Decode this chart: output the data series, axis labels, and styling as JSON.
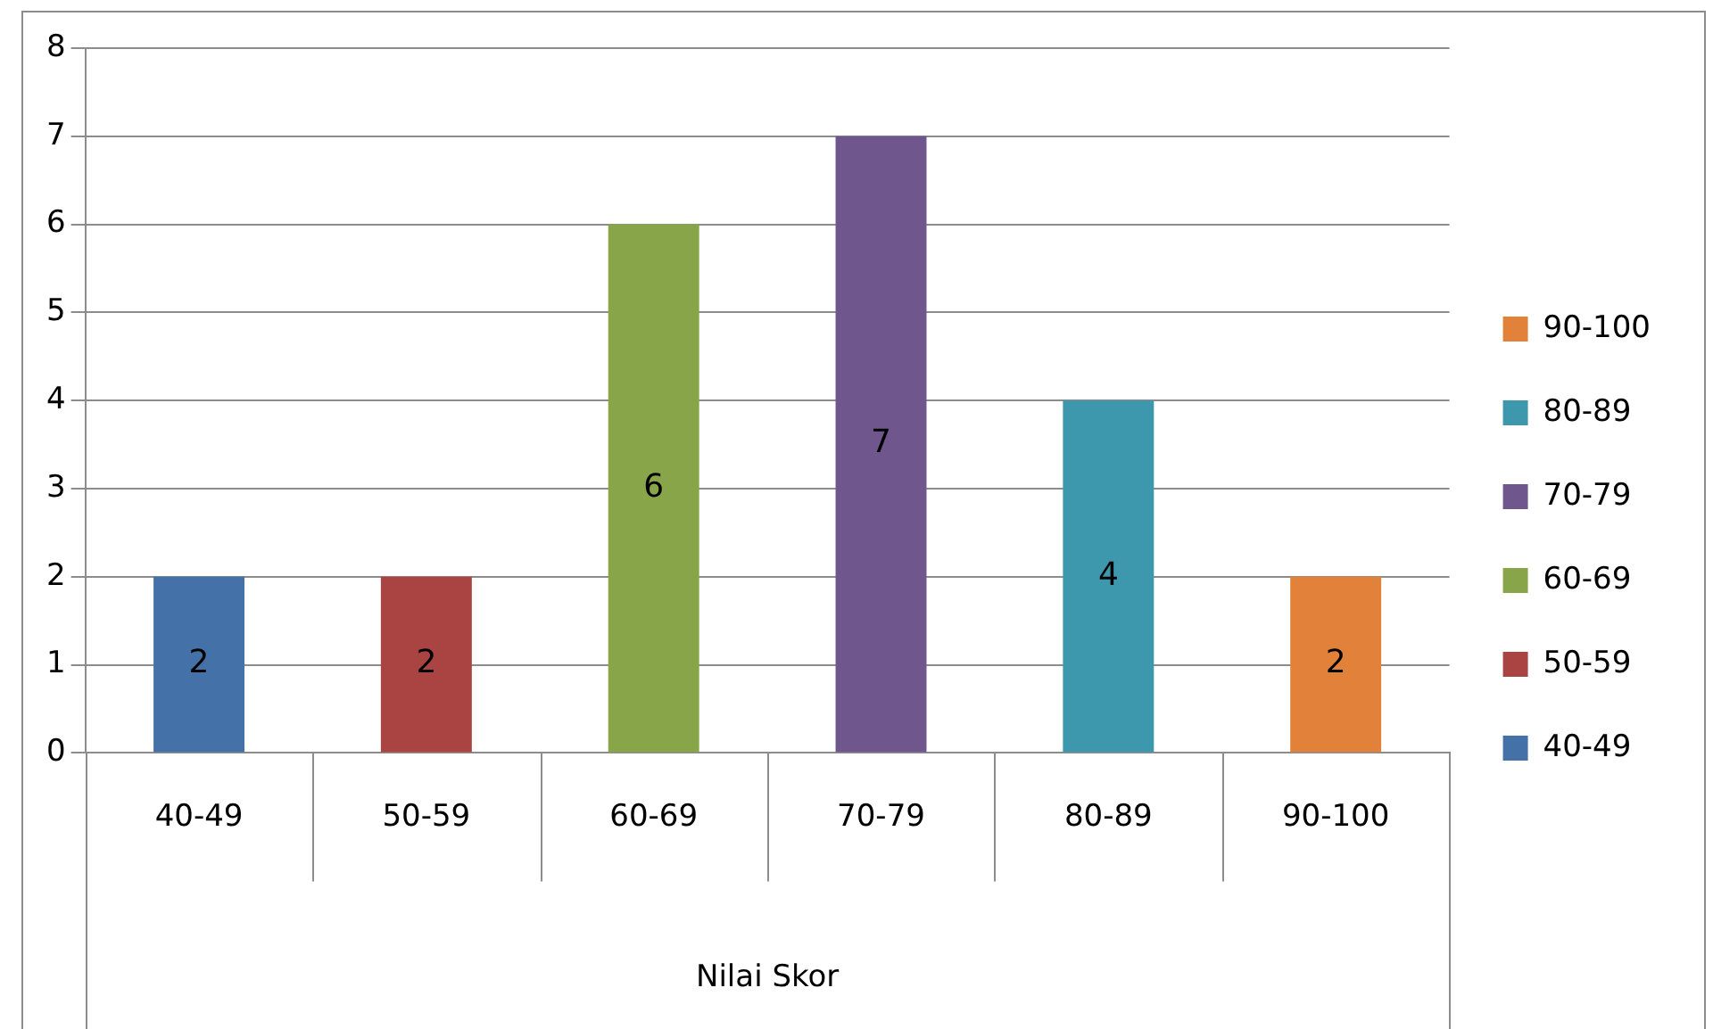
{
  "chart_data": {
    "type": "bar",
    "xlabel": "Nilai Skor",
    "categories": [
      "40-49",
      "50-59",
      "60-69",
      "70-79",
      "80-89",
      "90-100"
    ],
    "series": [
      {
        "name": "40-49",
        "color": "#4472a8",
        "values": [
          2,
          null,
          null,
          null,
          null,
          null
        ]
      },
      {
        "name": "50-59",
        "color": "#a94442",
        "values": [
          null,
          2,
          null,
          null,
          null,
          null
        ]
      },
      {
        "name": "60-69",
        "color": "#88a54a",
        "values": [
          null,
          null,
          6,
          null,
          null,
          null
        ]
      },
      {
        "name": "70-79",
        "color": "#6f578e",
        "values": [
          null,
          null,
          null,
          7,
          null,
          null
        ]
      },
      {
        "name": "80-89",
        "color": "#3d97ad",
        "values": [
          null,
          null,
          null,
          null,
          4,
          null
        ]
      },
      {
        "name": "90-100",
        "color": "#e2823a",
        "values": [
          null,
          null,
          null,
          null,
          null,
          2
        ]
      }
    ],
    "ylim": [
      0,
      8
    ],
    "yticks": [
      0,
      1,
      2,
      3,
      4,
      5,
      6,
      7,
      8
    ],
    "grid": "y",
    "legend": "right",
    "data_labels": true
  }
}
